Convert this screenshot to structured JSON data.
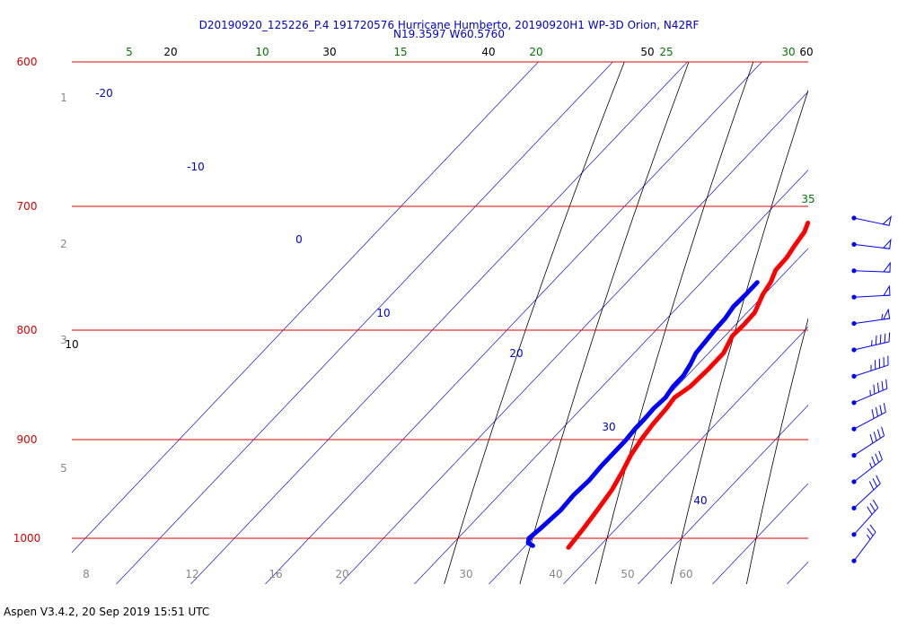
{
  "header": {
    "title_line1": "D20190920_125226_P.4 191720576 Hurricane Humberto, 20190920H1 WP-3D Orion, N42RF",
    "title_line2": "N19.3597 W60.5760"
  },
  "footer": {
    "text": "Aspen V3.4.2, 20 Sep 2019  15:51 UTC"
  },
  "colors": {
    "isobar": "#dd0000",
    "isotherm_label": "#0000cc",
    "dry_adiabat": "#000000",
    "moist_adiabat": "#888888",
    "mixing_ratio": "#007700",
    "temperature": "#ff0000",
    "dewpoint": "#0000ff",
    "wind_barb": "#0000ff",
    "height_label": "#888888"
  },
  "chart_data": {
    "type": "line",
    "diagram": "skew-T log-P",
    "y_axis": {
      "scale": "log",
      "ticks": [
        "600",
        "700",
        "800",
        "900",
        "1000"
      ]
    },
    "height_labels": [
      "1",
      "2",
      "3",
      "5"
    ],
    "isotherm_labels": [
      "-20",
      "-10",
      "0",
      "10",
      "20",
      "30",
      "40"
    ],
    "dry_adiabat_labels": [
      "10",
      "20",
      "30",
      "40",
      "50",
      "60"
    ],
    "mixing_ratio_labels": [
      "5",
      "10",
      "15",
      "20",
      "25",
      "30",
      "35"
    ],
    "moist_adiabat_labels": [
      "8",
      "12",
      "16",
      "20",
      "30",
      "40",
      "50",
      "60"
    ],
    "series": [
      {
        "name": "Temperature",
        "color": "#ff0000",
        "p": [
          1010,
          990,
          970,
          950,
          930,
          915,
          900,
          885,
          870,
          860,
          850,
          835,
          820,
          805,
          795,
          785,
          770,
          760,
          750,
          740,
          730,
          720,
          713
        ],
        "t": [
          26.0,
          25.6,
          25.1,
          24.5,
          23.5,
          22.6,
          22.0,
          21.6,
          21.4,
          21.1,
          21.8,
          22.0,
          22.0,
          21.0,
          21.1,
          21.0,
          19.8,
          19.3,
          18.4,
          18.3,
          17.8,
          17.4,
          16.7
        ]
      },
      {
        "name": "Dewpoint",
        "color": "#0000ff",
        "p": [
          1008,
          1005,
          1000,
          990,
          980,
          970,
          955,
          940,
          925,
          910,
          900,
          890,
          880,
          870,
          860,
          850,
          840,
          830,
          820,
          810,
          800,
          790,
          780,
          770,
          760
        ],
        "td": [
          21.0,
          20.0,
          19.5,
          19.8,
          20.0,
          20.2,
          20.0,
          20.2,
          20.0,
          20.0,
          20.0,
          19.8,
          19.8,
          19.7,
          19.9,
          19.5,
          19.5,
          19.0,
          18.3,
          18.1,
          17.9,
          17.8,
          17.4,
          17.5,
          17.5
        ]
      }
    ],
    "wind_barbs": [
      {
        "p": 710,
        "speed_kt": 50
      },
      {
        "p": 735,
        "speed_kt": 50
      },
      {
        "p": 760,
        "speed_kt": 50
      },
      {
        "p": 785,
        "speed_kt": 50
      },
      {
        "p": 810,
        "speed_kt": 55
      },
      {
        "p": 835,
        "speed_kt": 45
      },
      {
        "p": 860,
        "speed_kt": 45
      },
      {
        "p": 885,
        "speed_kt": 45
      },
      {
        "p": 910,
        "speed_kt": 40
      },
      {
        "p": 935,
        "speed_kt": 40
      },
      {
        "p": 960,
        "speed_kt": 35
      },
      {
        "p": 985,
        "speed_kt": 30
      },
      {
        "p": 1010,
        "speed_kt": 30
      },
      {
        "p": 1030,
        "speed_kt": 25
      }
    ]
  }
}
